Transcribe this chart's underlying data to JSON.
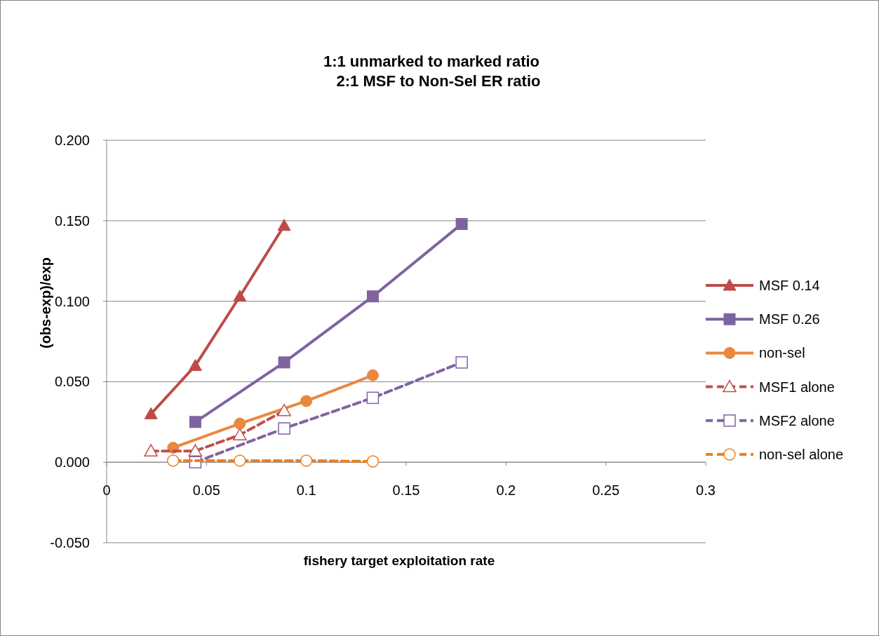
{
  "chart_data": {
    "type": "line",
    "title": "1:1 unmarked to marked ratio",
    "subtitle": "2:1 MSF to Non-Sel ER ratio",
    "xlabel": "fishery target exploitation rate",
    "ylabel": "(obs-exp)/exp",
    "xlim": [
      0,
      0.3
    ],
    "xticks": [
      0,
      0.05,
      0.1,
      0.15,
      0.2,
      0.25,
      0.3
    ],
    "ylim": [
      -0.05,
      0.2
    ],
    "yticks": [
      {
        "value": -0.05,
        "label": "-0.050"
      },
      {
        "value": 0,
        "label": "0.000"
      },
      {
        "value": 0.05,
        "label": "0.050"
      },
      {
        "value": 0.1,
        "label": "0.100"
      },
      {
        "value": 0.15,
        "label": "0.150"
      },
      {
        "value": 0.2,
        "label": "0.200"
      }
    ],
    "grid": "y",
    "legend": "right",
    "series": [
      {
        "name": "MSF 0.14",
        "color": "#be4b48",
        "marker": "triangle",
        "line_style": "solid",
        "x": [
          0.0222,
          0.0444,
          0.0667,
          0.0889
        ],
        "values": [
          0.03,
          0.06,
          0.103,
          0.147
        ]
      },
      {
        "name": "MSF 0.26",
        "color": "#7f63a1",
        "marker": "square",
        "line_style": "solid",
        "x": [
          0.0444,
          0.0889,
          0.1333,
          0.1778
        ],
        "values": [
          0.025,
          0.062,
          0.103,
          0.148
        ]
      },
      {
        "name": "non-sel",
        "color": "#e9883f",
        "marker": "circle",
        "line_style": "solid",
        "x": [
          0.0333,
          0.0667,
          0.1,
          0.1333
        ],
        "values": [
          0.009,
          0.024,
          0.038,
          0.054
        ]
      },
      {
        "name": "MSF1 alone",
        "color": "#c0504d",
        "marker": "triangle",
        "line_style": "dashed",
        "x": [
          0.0222,
          0.0444,
          0.0667,
          0.0889
        ],
        "values": [
          0.007,
          0.007,
          0.017,
          0.032
        ]
      },
      {
        "name": "MSF2 alone",
        "color": "#8064a2",
        "marker": "square",
        "line_style": "dashed",
        "x": [
          0.0444,
          0.0889,
          0.1333,
          0.1778
        ],
        "values": [
          0.0,
          0.021,
          0.04,
          0.062
        ]
      },
      {
        "name": "non-sel alone",
        "color": "#f07e1e",
        "marker": "circle",
        "line_style": "dashed",
        "x": [
          0.0333,
          0.0667,
          0.1,
          0.1333
        ],
        "values": [
          0.001,
          0.001,
          0.001,
          0.0005
        ]
      }
    ]
  }
}
